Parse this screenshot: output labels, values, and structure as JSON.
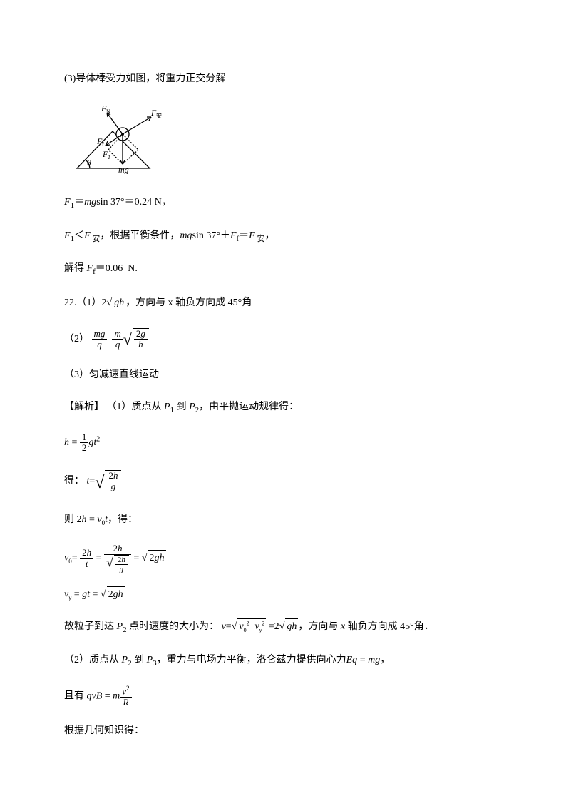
{
  "p3": {
    "intro": "(3)导体棒受力如图，将重力正交分解",
    "f1_eq": "＝<span class='it'>mg</span>sin&nbsp;37°＝0.24 N，",
    "f1_prefix": "<span class='it'>F</span><span class='sub'>1</span>",
    "cond_prefix": "<span class='it'>F</span><span class='sub'>1</span>＜<span class='it'>F</span><span class='sub' style='font-style:normal'>&nbsp;安</span>，根据平衡条件，",
    "cond_eq": "<span class='it'>mg</span>sin 37°＋<span class='it'>F</span><span class='sub'>f</span>＝<span class='it'>F</span><span class='sub' style='font-style:normal'>&nbsp;安</span>，",
    "solve": "解得 <span class='it'>F</span><span class='sub'>f</span>＝0.06&nbsp;&nbsp;N."
  },
  "q22": {
    "a1_pre": "22.（1）2",
    "a1_post": "，方向与 x 轴负方向成 45°角",
    "a2_label": "（2）",
    "a3": "（3）匀减速直线运动",
    "expl_label": "【解析】",
    "expl_1": "（1）质点从 <span class='it'>P</span><span class='sub'>1</span> 到 <span class='it'>P</span><span class='sub'>2</span>，由平抛运动规律得：",
    "get": "得：",
    "then_pre": "则",
    "then_post": "，得：",
    "reachP2_a": "故粒子到达 <span class='it'>P</span><span class='sub'>2</span> 点时速度的大小为：",
    "reachP2_b": "，方向与 <span class='it'>x</span> 轴负方向成 45°角．",
    "part2_a": "（2）质点从 <span class='it'>P</span><span class='sub'>2</span> 到 <span class='it'>P</span><span class='sub'>3</span>，重力与电场力平衡，洛仑兹力提供向心力",
    "part2_eq": "<span class='it'>Eq</span> = <span class='it'>mg</span>，",
    "andHave": "且有",
    "geom": "根据几何知识得："
  },
  "diagram": {
    "labels": {
      "FN": "F",
      "FNsub": "N",
      "Fan": "F",
      "Fansub": "安",
      "Ff": "F",
      "Ffsub": "f",
      "F1": "F",
      "F1sub": "1",
      "mg": "mg",
      "theta": "θ"
    },
    "stroke": "#000000"
  }
}
